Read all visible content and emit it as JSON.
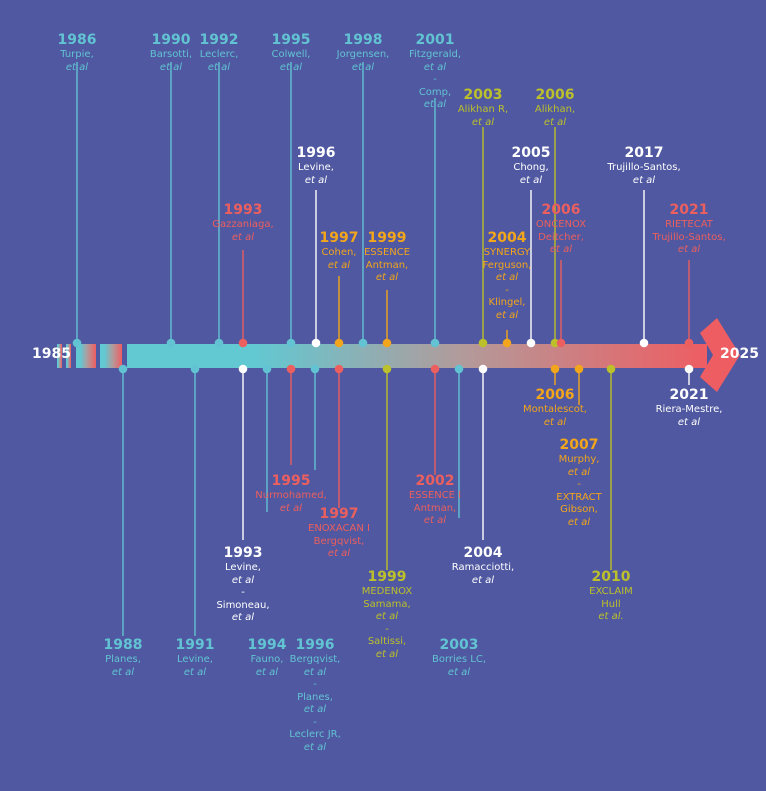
{
  "axis": {
    "start_label": "1985",
    "end_label": "2025"
  },
  "colors": {
    "background": "#4f58a0",
    "cyan": "#62c3d3",
    "white": "#ffffff",
    "orange": "#f3a51b",
    "red": "#ec5f5f",
    "olive": "#bcc02a",
    "arrow_red": "#ee5d62"
  },
  "events": [
    {
      "year": "1986",
      "lines": [
        "Turpie,",
        "et al"
      ],
      "color": "cyan"
    },
    {
      "year": "1990",
      "lines": [
        "Barsotti,",
        "et al"
      ],
      "color": "cyan"
    },
    {
      "year": "1992",
      "lines": [
        "Leclerc,",
        "et al"
      ],
      "color": "cyan"
    },
    {
      "year": "1995",
      "lines": [
        "Colwell,",
        "et al"
      ],
      "color": "cyan"
    },
    {
      "year": "1998",
      "lines": [
        "Jorgensen,",
        "et al"
      ],
      "color": "cyan"
    },
    {
      "year": "2001",
      "lines": [
        "Fitzgerald,",
        "et al",
        "-",
        "Comp,",
        "et al"
      ],
      "color": "cyan"
    },
    {
      "year": "2003",
      "lines": [
        "Alikhan R,",
        "et al"
      ],
      "color": "olive"
    },
    {
      "year": "2006",
      "lines": [
        "Alikhan,",
        "et al"
      ],
      "color": "olive"
    },
    {
      "year": "1996",
      "lines": [
        "Levine,",
        "et al"
      ],
      "color": "white"
    },
    {
      "year": "2005",
      "lines": [
        "Chong,",
        "et al"
      ],
      "color": "white"
    },
    {
      "year": "2017",
      "lines": [
        "Trujillo-Santos,",
        "et al"
      ],
      "color": "white"
    },
    {
      "year": "1993",
      "lines": [
        "Gazzaniaga,",
        "et al"
      ],
      "color": "red"
    },
    {
      "year": "2006",
      "lines": [
        "ONCENOX",
        "Deitcher,",
        "et al"
      ],
      "color": "red"
    },
    {
      "year": "2021",
      "lines": [
        "RIETECAT",
        "Trujillo-Santos,",
        "et al"
      ],
      "color": "red"
    },
    {
      "year": "1997",
      "lines": [
        "Cohen,",
        "et al"
      ],
      "color": "orange"
    },
    {
      "year": "1999",
      "lines": [
        "ESSENCE",
        "Antman,",
        "et al"
      ],
      "color": "orange"
    },
    {
      "year": "2004",
      "lines": [
        "SYNERGY",
        "Ferguson,",
        "et al",
        "-",
        "Klingel,",
        "et al"
      ],
      "color": "orange"
    },
    {
      "year": "2006",
      "lines": [
        "Montalescot,",
        "et al"
      ],
      "color": "orange"
    },
    {
      "year": "2021",
      "lines": [
        "Riera-Mestre,",
        "et al"
      ],
      "color": "white"
    },
    {
      "year": "2007",
      "lines": [
        "Murphy,",
        "et al",
        "-",
        "EXTRACT",
        "Gibson,",
        "et al"
      ],
      "color": "orange"
    },
    {
      "year": "1995",
      "lines": [
        "Nurmohamed,",
        "et al"
      ],
      "color": "red"
    },
    {
      "year": "1997",
      "lines": [
        "ENOXACAN I",
        "Bergqvist,",
        "et al"
      ],
      "color": "red"
    },
    {
      "year": "2002",
      "lines": [
        "ESSENCE I",
        "Antman,",
        "et al"
      ],
      "color": "red"
    },
    {
      "year": "1993",
      "lines": [
        "Levine,",
        "et al",
        "-",
        "Simoneau,",
        "et al"
      ],
      "color": "white"
    },
    {
      "year": "2004",
      "lines": [
        "Ramacciotti,",
        "et al"
      ],
      "color": "white"
    },
    {
      "year": "1999",
      "lines": [
        "MEDENOX",
        "Samama,",
        "et al",
        "-",
        "Saltissi,",
        "et al"
      ],
      "color": "olive"
    },
    {
      "year": "2010",
      "lines": [
        "EXCLAIM",
        "Hull",
        "et al."
      ],
      "color": "olive"
    },
    {
      "year": "1988",
      "lines": [
        "Planes,",
        "et al"
      ],
      "color": "cyan"
    },
    {
      "year": "1991",
      "lines": [
        "Levine,",
        "et al"
      ],
      "color": "cyan"
    },
    {
      "year": "1994",
      "lines": [
        "Fauno,",
        "et al"
      ],
      "color": "cyan"
    },
    {
      "year": "1996",
      "lines": [
        "Bergqvist,",
        "et al",
        "-",
        "Planes,",
        "et al",
        "-",
        "Leclerc JR,",
        "et al"
      ],
      "color": "cyan"
    },
    {
      "year": "2003",
      "lines": [
        "Borries LC,",
        "et al"
      ],
      "color": "cyan"
    }
  ]
}
